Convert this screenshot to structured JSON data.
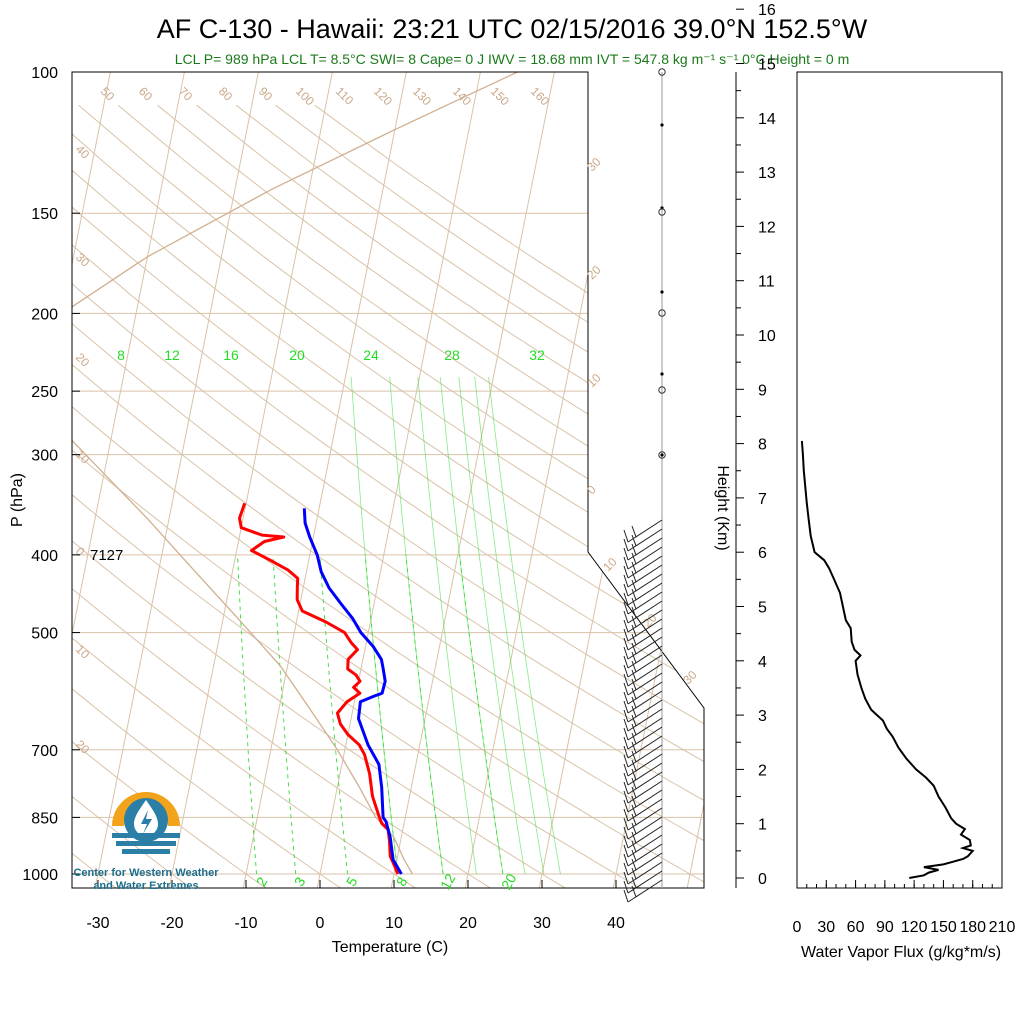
{
  "header": {
    "title": "AF C-130 - Hawaii: 23:21 UTC 02/15/2016  39.0°N 152.5°W",
    "subtitle": "LCL P= 989 hPa  LCL T= 8.5°C  SWI= 8  Cape= 0 J  IWV = 18.68 mm  IVT = 547.8 kg m⁻¹ s⁻¹  0°C Height = 0 m"
  },
  "skewt_annotation": "7127",
  "logo": {
    "line1": "Center for Western Weather",
    "line2": "and Water Extremes"
  },
  "colors": {
    "temperature": "#ff0000",
    "dewpoint": "#0000ff",
    "isotherm_adiabat": "#d9c2a8",
    "mixing_ratio": "#33dd33",
    "flux": "#000000"
  },
  "chart_data": [
    {
      "type": "line",
      "name": "skew-t",
      "xlabel": "Temperature (C)",
      "ylabel": "P (hPa)",
      "xticks": [
        -30,
        -20,
        -10,
        0,
        10,
        20,
        30,
        40
      ],
      "yticks": [
        100,
        150,
        200,
        250,
        300,
        400,
        500,
        700,
        850,
        1000
      ],
      "xlim": [
        -33,
        41
      ],
      "ylim": [
        1050,
        100
      ],
      "yscale": "log",
      "dry_adiabat_labels": [
        "50",
        "60",
        "70",
        "80",
        "90",
        "100",
        "110",
        "120",
        "130",
        "140",
        "150",
        "160"
      ],
      "left_edge_labels": [
        "40",
        "30",
        "20",
        "10",
        "0",
        "10",
        "20"
      ],
      "right_edge_labels": [
        "30",
        "20",
        "10",
        "0",
        "10",
        "20",
        "30"
      ],
      "mixing_ratio_labels_top": [
        "8",
        "12",
        "16",
        "20",
        "24",
        "28",
        "32"
      ],
      "mixing_ratio_labels_bottom": [
        "2",
        "3",
        "5",
        "8",
        "12",
        "20"
      ],
      "series": [
        {
          "name": "temperature",
          "points": [
            [
              10.5,
              1000
            ],
            [
              9.8,
              975
            ],
            [
              9.0,
              950
            ],
            [
              8.5,
              910
            ],
            [
              8.0,
              880
            ],
            [
              7.0,
              865
            ],
            [
              6.5,
              850
            ],
            [
              5.0,
              800
            ],
            [
              4.0,
              750
            ],
            [
              2.8,
              710
            ],
            [
              1.8,
              690
            ],
            [
              0.0,
              670
            ],
            [
              -1.3,
              650
            ],
            [
              -2.0,
              630
            ],
            [
              -1.0,
              610
            ],
            [
              0.5,
              595
            ],
            [
              -0.5,
              585
            ],
            [
              0.2,
              575
            ],
            [
              -0.5,
              565
            ],
            [
              -1.8,
              555
            ],
            [
              -2.0,
              540
            ],
            [
              -1.0,
              525
            ],
            [
              -2.0,
              515
            ],
            [
              -3.2,
              500
            ],
            [
              -6.0,
              485
            ],
            [
              -9.5,
              470
            ],
            [
              -10.5,
              455
            ],
            [
              -10.8,
              440
            ],
            [
              -11.0,
              428
            ],
            [
              -12.5,
              418
            ],
            [
              -15.5,
              405
            ],
            [
              -18.0,
              395
            ],
            [
              -16.5,
              385
            ],
            [
              -14.0,
              380
            ],
            [
              -17.0,
              378
            ],
            [
              -20.0,
              370
            ],
            [
              -20.5,
              360
            ],
            [
              -20.2,
              345
            ]
          ]
        },
        {
          "name": "dewpoint",
          "points": [
            [
              11.0,
              1000
            ],
            [
              9.5,
              960
            ],
            [
              8.5,
              900
            ],
            [
              7.5,
              860
            ],
            [
              7.0,
              850
            ],
            [
              6.0,
              780
            ],
            [
              5.0,
              730
            ],
            [
              3.0,
              690
            ],
            [
              1.0,
              640
            ],
            [
              0.8,
              610
            ],
            [
              2.5,
              600
            ],
            [
              3.5,
              595
            ],
            [
              3.6,
              575
            ],
            [
              3.0,
              555
            ],
            [
              2.5,
              540
            ],
            [
              1.0,
              520
            ],
            [
              -1.0,
              500
            ],
            [
              -2.5,
              480
            ],
            [
              -4.5,
              460
            ],
            [
              -6.5,
              440
            ],
            [
              -8.0,
              420
            ],
            [
              -9.0,
              400
            ],
            [
              -10.5,
              380
            ],
            [
              -11.5,
              365
            ],
            [
              -12.0,
              350
            ]
          ]
        }
      ]
    },
    {
      "type": "line",
      "name": "water-vapor-flux",
      "xlabel": "Water Vapor Flux (g/kg*m/s)",
      "ylabel": "Height (Km)",
      "xticks": [
        0,
        30,
        60,
        90,
        120,
        150,
        180,
        210
      ],
      "yticks": [
        0,
        1,
        2,
        3,
        4,
        5,
        6,
        7,
        8,
        9,
        10,
        11,
        12,
        13,
        14,
        15,
        16
      ],
      "xlim": [
        0,
        210
      ],
      "ylim": [
        -0.2,
        16.3
      ],
      "points": [
        [
          115,
          0.0
        ],
        [
          130,
          0.05
        ],
        [
          135,
          0.1
        ],
        [
          145,
          0.15
        ],
        [
          130,
          0.2
        ],
        [
          150,
          0.25
        ],
        [
          160,
          0.3
        ],
        [
          170,
          0.35
        ],
        [
          175,
          0.4
        ],
        [
          180,
          0.5
        ],
        [
          170,
          0.55
        ],
        [
          178,
          0.6
        ],
        [
          177,
          0.7
        ],
        [
          168,
          0.8
        ],
        [
          172,
          0.9
        ],
        [
          163,
          1.0
        ],
        [
          158,
          1.1
        ],
        [
          152,
          1.3
        ],
        [
          145,
          1.5
        ],
        [
          140,
          1.7
        ],
        [
          132,
          1.85
        ],
        [
          122,
          2.0
        ],
        [
          112,
          2.2
        ],
        [
          104,
          2.4
        ],
        [
          98,
          2.6
        ],
        [
          92,
          2.75
        ],
        [
          88,
          2.9
        ],
        [
          82,
          3.0
        ],
        [
          76,
          3.1
        ],
        [
          70,
          3.3
        ],
        [
          66,
          3.5
        ],
        [
          62,
          3.75
        ],
        [
          60,
          4.0
        ],
        [
          65,
          4.1
        ],
        [
          59,
          4.2
        ],
        [
          56,
          4.35
        ],
        [
          55,
          4.6
        ],
        [
          50,
          4.75
        ],
        [
          47,
          5.0
        ],
        [
          44,
          5.25
        ],
        [
          38,
          5.5
        ],
        [
          33,
          5.7
        ],
        [
          28,
          5.85
        ],
        [
          18,
          6.0
        ],
        [
          14,
          6.3
        ],
        [
          12,
          6.6
        ],
        [
          10,
          6.9
        ],
        [
          9,
          7.1
        ],
        [
          8,
          7.3
        ],
        [
          7,
          7.5
        ],
        [
          6,
          7.8
        ],
        [
          5,
          8.05
        ]
      ]
    }
  ]
}
